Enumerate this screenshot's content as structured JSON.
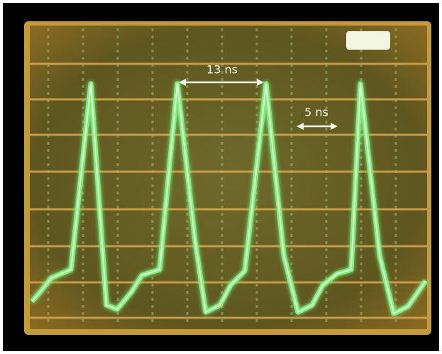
{
  "annotations": [
    "13 ns",
    "5 ns"
  ]
}
